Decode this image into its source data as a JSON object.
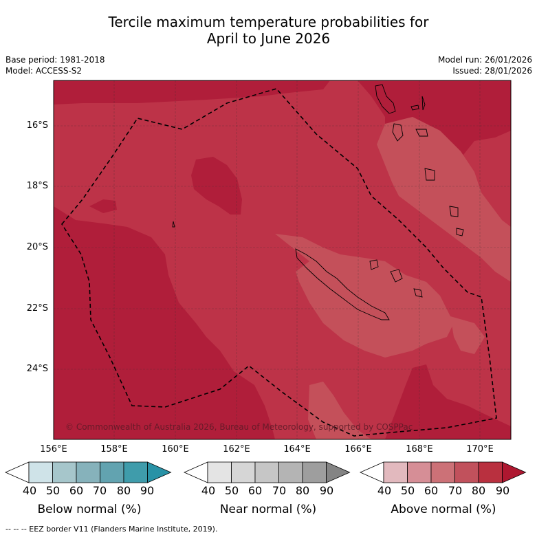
{
  "title": {
    "line1": "Tercile maximum temperature probabilities for",
    "line2": "April to June 2026"
  },
  "meta": {
    "base_period": "Base period: 1981-2018",
    "model": "Model: ACCESS-S2",
    "model_run": "Model run: 26/01/2026",
    "issued": "Issued: 28/01/2026"
  },
  "map": {
    "region": "New Caledonia",
    "lat_labels": [
      "16°S",
      "18°S",
      "20°S",
      "22°S",
      "24°S"
    ],
    "lon_labels": [
      "156°E",
      "158°E",
      "160°E",
      "162°E",
      "164°E",
      "166°E",
      "168°E",
      "170°E"
    ],
    "copyright": "© Commonwealth of Australia 2026, Bureau of Meteorology, supported by COSPPac",
    "colors": {
      "prob_80_90": "#b01e3a",
      "prob_70_80": "#bd3348",
      "prob_60_70": "#c4505a",
      "coastline": "#000000",
      "eez": "#000000"
    }
  },
  "colorbars": [
    {
      "title": "Below normal (%)",
      "ticks": [
        "40",
        "50",
        "60",
        "70",
        "80",
        "90"
      ],
      "colors": [
        "#ffffff",
        "#cfe3e8",
        "#a6c6cb",
        "#86b2bb",
        "#62a3b0",
        "#3f9cab",
        "#2892a6"
      ]
    },
    {
      "title": "Near normal (%)",
      "ticks": [
        "40",
        "50",
        "60",
        "70",
        "80",
        "90"
      ],
      "colors": [
        "#ffffff",
        "#e4e4e4",
        "#d6d6d6",
        "#c6c6c6",
        "#b4b4b4",
        "#9e9e9e",
        "#848484"
      ]
    },
    {
      "title": "Above normal (%)",
      "ticks": [
        "40",
        "50",
        "60",
        "70",
        "80",
        "90"
      ],
      "colors": [
        "#ffffff",
        "#e2b9be",
        "#d68e96",
        "#cc7177",
        "#c1515c",
        "#b9303f",
        "#ae1730"
      ]
    }
  ],
  "footer": "--  --  -- EEZ border V11 (Flanders Marine Institute, 2019)."
}
